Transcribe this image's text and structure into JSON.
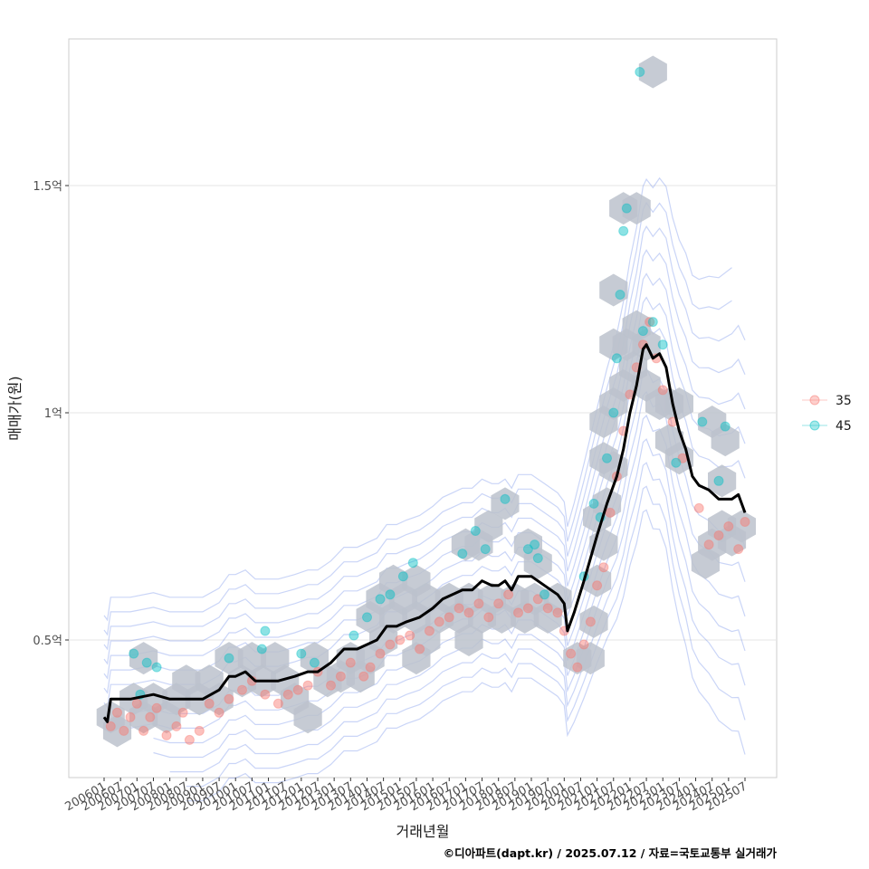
{
  "chart_data": {
    "type": "scatter",
    "xlabel": "거래년월",
    "ylabel": "매매가(원)",
    "caption": "©디아파트(dapt.kr) / 2025.07.12 / 자료=국토교통부 실거래가",
    "ylim": [
      0.2,
      1.83
    ],
    "xlim": [
      2005.3,
      2026.4
    ],
    "y_ticks": [
      {
        "value": 0.5,
        "label": "0.5억"
      },
      {
        "value": 1.0,
        "label": "1억"
      },
      {
        "value": 1.5,
        "label": "1.5억"
      }
    ],
    "x_ticks": [
      "200601",
      "200607",
      "200701",
      "200707",
      "200801",
      "200807",
      "200901",
      "200907",
      "201001",
      "201007",
      "201101",
      "201107",
      "201201",
      "201207",
      "201301",
      "201307",
      "201401",
      "201407",
      "201501",
      "201507",
      "201601",
      "201607",
      "201701",
      "201707",
      "201801",
      "201807",
      "201901",
      "201907",
      "202001",
      "202007",
      "202101",
      "202107",
      "202201",
      "202207",
      "202301",
      "202307",
      "202401",
      "202407",
      "202501",
      "202507"
    ],
    "legend": {
      "position": "right",
      "entries": [
        {
          "label": "35",
          "color": "#F8766D"
        },
        {
          "label": "45",
          "color": "#00BFC4"
        }
      ]
    },
    "grid": true,
    "series": [
      {
        "name": "35",
        "color": "#F8766D",
        "points": [
          [
            2006.2,
            0.31
          ],
          [
            2006.4,
            0.34
          ],
          [
            2006.6,
            0.3
          ],
          [
            2006.8,
            0.33
          ],
          [
            2007.0,
            0.36
          ],
          [
            2007.2,
            0.3
          ],
          [
            2007.4,
            0.33
          ],
          [
            2007.6,
            0.35
          ],
          [
            2007.9,
            0.29
          ],
          [
            2008.2,
            0.31
          ],
          [
            2008.4,
            0.34
          ],
          [
            2008.6,
            0.28
          ],
          [
            2008.9,
            0.3
          ],
          [
            2009.2,
            0.36
          ],
          [
            2009.5,
            0.34
          ],
          [
            2009.8,
            0.37
          ],
          [
            2010.2,
            0.39
          ],
          [
            2010.5,
            0.41
          ],
          [
            2010.9,
            0.38
          ],
          [
            2011.3,
            0.36
          ],
          [
            2011.6,
            0.38
          ],
          [
            2011.9,
            0.39
          ],
          [
            2012.2,
            0.4
          ],
          [
            2012.5,
            0.43
          ],
          [
            2012.9,
            0.4
          ],
          [
            2013.2,
            0.42
          ],
          [
            2013.5,
            0.45
          ],
          [
            2013.9,
            0.42
          ],
          [
            2014.1,
            0.44
          ],
          [
            2014.4,
            0.47
          ],
          [
            2014.7,
            0.49
          ],
          [
            2015.0,
            0.5
          ],
          [
            2015.3,
            0.51
          ],
          [
            2015.6,
            0.48
          ],
          [
            2015.9,
            0.52
          ],
          [
            2016.2,
            0.54
          ],
          [
            2016.5,
            0.55
          ],
          [
            2016.8,
            0.57
          ],
          [
            2017.1,
            0.56
          ],
          [
            2017.4,
            0.58
          ],
          [
            2017.7,
            0.55
          ],
          [
            2018.0,
            0.58
          ],
          [
            2018.3,
            0.6
          ],
          [
            2018.6,
            0.56
          ],
          [
            2018.9,
            0.57
          ],
          [
            2019.2,
            0.59
          ],
          [
            2019.5,
            0.57
          ],
          [
            2019.8,
            0.56
          ],
          [
            2020.0,
            0.52
          ],
          [
            2020.2,
            0.47
          ],
          [
            2020.4,
            0.44
          ],
          [
            2020.6,
            0.49
          ],
          [
            2020.8,
            0.54
          ],
          [
            2021.0,
            0.62
          ],
          [
            2021.2,
            0.66
          ],
          [
            2021.4,
            0.78
          ],
          [
            2021.6,
            0.86
          ],
          [
            2021.8,
            0.96
          ],
          [
            2022.0,
            1.04
          ],
          [
            2022.2,
            1.1
          ],
          [
            2022.4,
            1.15
          ],
          [
            2022.6,
            1.2
          ],
          [
            2022.8,
            1.12
          ],
          [
            2023.0,
            1.05
          ],
          [
            2023.3,
            0.98
          ],
          [
            2023.6,
            0.9
          ],
          [
            2024.1,
            0.79
          ],
          [
            2024.4,
            0.71
          ],
          [
            2024.7,
            0.73
          ],
          [
            2025.0,
            0.75
          ],
          [
            2025.3,
            0.7
          ],
          [
            2025.5,
            0.76
          ]
        ]
      },
      {
        "name": "45",
        "color": "#00BFC4",
        "points": [
          [
            2006.9,
            0.47
          ],
          [
            2007.3,
            0.45
          ],
          [
            2007.6,
            0.44
          ],
          [
            2007.1,
            0.38
          ],
          [
            2009.8,
            0.46
          ],
          [
            2010.8,
            0.48
          ],
          [
            2010.9,
            0.52
          ],
          [
            2012.0,
            0.47
          ],
          [
            2012.4,
            0.45
          ],
          [
            2013.6,
            0.51
          ],
          [
            2014.0,
            0.55
          ],
          [
            2014.4,
            0.59
          ],
          [
            2014.7,
            0.6
          ],
          [
            2015.1,
            0.64
          ],
          [
            2015.4,
            0.67
          ],
          [
            2016.9,
            0.69
          ],
          [
            2017.3,
            0.74
          ],
          [
            2017.6,
            0.7
          ],
          [
            2018.2,
            0.81
          ],
          [
            2018.9,
            0.7
          ],
          [
            2019.1,
            0.71
          ],
          [
            2019.2,
            0.68
          ],
          [
            2019.4,
            0.6
          ],
          [
            2020.6,
            0.64
          ],
          [
            2020.9,
            0.8
          ],
          [
            2021.1,
            0.77
          ],
          [
            2021.3,
            0.9
          ],
          [
            2021.5,
            1.0
          ],
          [
            2021.6,
            1.12
          ],
          [
            2021.8,
            1.4
          ],
          [
            2021.9,
            1.45
          ],
          [
            2021.7,
            1.26
          ],
          [
            2022.4,
            1.18
          ],
          [
            2022.7,
            1.2
          ],
          [
            2022.3,
            1.75
          ],
          [
            2023.0,
            1.15
          ],
          [
            2023.4,
            0.89
          ],
          [
            2024.2,
            0.98
          ],
          [
            2024.7,
            0.85
          ],
          [
            2024.9,
            0.97
          ]
        ]
      }
    ],
    "trend_line": {
      "name": "moving-average",
      "color": "#000000",
      "points": [
        [
          2006.0,
          0.33
        ],
        [
          2006.1,
          0.32
        ],
        [
          2006.2,
          0.37
        ],
        [
          2006.8,
          0.37
        ],
        [
          2007.5,
          0.38
        ],
        [
          2008.0,
          0.37
        ],
        [
          2008.5,
          0.37
        ],
        [
          2009.0,
          0.37
        ],
        [
          2009.5,
          0.39
        ],
        [
          2009.8,
          0.42
        ],
        [
          2010.0,
          0.42
        ],
        [
          2010.3,
          0.43
        ],
        [
          2010.6,
          0.41
        ],
        [
          2011.0,
          0.41
        ],
        [
          2011.3,
          0.41
        ],
        [
          2011.8,
          0.42
        ],
        [
          2012.2,
          0.43
        ],
        [
          2012.5,
          0.43
        ],
        [
          2012.9,
          0.45
        ],
        [
          2013.3,
          0.48
        ],
        [
          2013.7,
          0.48
        ],
        [
          2014.0,
          0.49
        ],
        [
          2014.3,
          0.5
        ],
        [
          2014.6,
          0.53
        ],
        [
          2014.9,
          0.53
        ],
        [
          2015.2,
          0.54
        ],
        [
          2015.6,
          0.55
        ],
        [
          2016.0,
          0.57
        ],
        [
          2016.3,
          0.59
        ],
        [
          2016.6,
          0.6
        ],
        [
          2016.9,
          0.61
        ],
        [
          2017.2,
          0.61
        ],
        [
          2017.5,
          0.63
        ],
        [
          2017.8,
          0.62
        ],
        [
          2018.0,
          0.62
        ],
        [
          2018.2,
          0.63
        ],
        [
          2018.4,
          0.61
        ],
        [
          2018.6,
          0.64
        ],
        [
          2019.0,
          0.64
        ],
        [
          2019.4,
          0.62
        ],
        [
          2019.8,
          0.6
        ],
        [
          2020.0,
          0.58
        ],
        [
          2020.1,
          0.52
        ],
        [
          2020.3,
          0.56
        ],
        [
          2020.6,
          0.63
        ],
        [
          2020.8,
          0.68
        ],
        [
          2021.0,
          0.73
        ],
        [
          2021.3,
          0.8
        ],
        [
          2021.6,
          0.86
        ],
        [
          2021.8,
          0.92
        ],
        [
          2022.0,
          1.0
        ],
        [
          2022.2,
          1.06
        ],
        [
          2022.4,
          1.14
        ],
        [
          2022.5,
          1.15
        ],
        [
          2022.7,
          1.12
        ],
        [
          2022.9,
          1.13
        ],
        [
          2023.1,
          1.1
        ],
        [
          2023.3,
          1.02
        ],
        [
          2023.5,
          0.96
        ],
        [
          2023.7,
          0.92
        ],
        [
          2023.9,
          0.86
        ],
        [
          2024.1,
          0.84
        ],
        [
          2024.4,
          0.83
        ],
        [
          2024.7,
          0.81
        ],
        [
          2025.1,
          0.81
        ],
        [
          2025.3,
          0.82
        ],
        [
          2025.5,
          0.78
        ]
      ]
    },
    "hexbins": [
      [
        2006.2,
        0.33
      ],
      [
        2006.4,
        0.3
      ],
      [
        2006.9,
        0.37
      ],
      [
        2007.2,
        0.33
      ],
      [
        2007.2,
        0.46
      ],
      [
        2007.5,
        0.37
      ],
      [
        2007.9,
        0.33
      ],
      [
        2008.2,
        0.37
      ],
      [
        2008.5,
        0.41
      ],
      [
        2008.9,
        0.37
      ],
      [
        2009.2,
        0.41
      ],
      [
        2009.5,
        0.37
      ],
      [
        2009.8,
        0.46
      ],
      [
        2010.2,
        0.41
      ],
      [
        2010.5,
        0.46
      ],
      [
        2010.8,
        0.41
      ],
      [
        2011.2,
        0.46
      ],
      [
        2011.5,
        0.41
      ],
      [
        2011.8,
        0.37
      ],
      [
        2012.2,
        0.33
      ],
      [
        2012.4,
        0.46
      ],
      [
        2012.8,
        0.41
      ],
      [
        2013.2,
        0.42
      ],
      [
        2013.5,
        0.46
      ],
      [
        2013.8,
        0.42
      ],
      [
        2014.1,
        0.46
      ],
      [
        2014.5,
        0.5
      ],
      [
        2014.8,
        0.55
      ],
      [
        2014.1,
        0.55
      ],
      [
        2014.4,
        0.59
      ],
      [
        2014.8,
        0.63
      ],
      [
        2015.1,
        0.59
      ],
      [
        2015.5,
        0.55
      ],
      [
        2015.5,
        0.63
      ],
      [
        2015.8,
        0.59
      ],
      [
        2015.8,
        0.5
      ],
      [
        2015.5,
        0.46
      ],
      [
        2016.2,
        0.55
      ],
      [
        2016.5,
        0.59
      ],
      [
        2016.8,
        0.55
      ],
      [
        2017.1,
        0.59
      ],
      [
        2017.1,
        0.5
      ],
      [
        2017.5,
        0.55
      ],
      [
        2017.8,
        0.59
      ],
      [
        2018.1,
        0.55
      ],
      [
        2018.5,
        0.59
      ],
      [
        2018.8,
        0.55
      ],
      [
        2019.1,
        0.59
      ],
      [
        2019.5,
        0.55
      ],
      [
        2019.8,
        0.59
      ],
      [
        2017.0,
        0.71
      ],
      [
        2017.4,
        0.71
      ],
      [
        2017.7,
        0.75
      ],
      [
        2018.2,
        0.8
      ],
      [
        2018.9,
        0.71
      ],
      [
        2019.2,
        0.67
      ],
      [
        2020.4,
        0.46
      ],
      [
        2020.8,
        0.46
      ],
      [
        2020.9,
        0.54
      ],
      [
        2021.0,
        0.63
      ],
      [
        2021.2,
        0.71
      ],
      [
        2021.0,
        0.77
      ],
      [
        2021.3,
        0.8
      ],
      [
        2021.2,
        0.9
      ],
      [
        2021.5,
        0.88
      ],
      [
        2021.2,
        0.98
      ],
      [
        2021.5,
        1.02
      ],
      [
        2021.8,
        1.06
      ],
      [
        2022.1,
        1.1
      ],
      [
        2021.5,
        1.15
      ],
      [
        2021.9,
        1.15
      ],
      [
        2022.2,
        1.19
      ],
      [
        2022.5,
        1.15
      ],
      [
        2021.5,
        1.27
      ],
      [
        2021.8,
        1.45
      ],
      [
        2022.2,
        1.45
      ],
      [
        2022.7,
        1.75
      ],
      [
        2022.5,
        1.06
      ],
      [
        2022.9,
        1.02
      ],
      [
        2023.2,
        1.02
      ],
      [
        2023.5,
        1.02
      ],
      [
        2023.2,
        0.94
      ],
      [
        2023.5,
        0.9
      ],
      [
        2024.3,
        0.67
      ],
      [
        2024.5,
        0.71
      ],
      [
        2024.8,
        0.75
      ],
      [
        2025.1,
        0.72
      ],
      [
        2025.4,
        0.75
      ],
      [
        2024.8,
        0.85
      ],
      [
        2024.5,
        0.98
      ],
      [
        2024.9,
        0.94
      ]
    ]
  }
}
